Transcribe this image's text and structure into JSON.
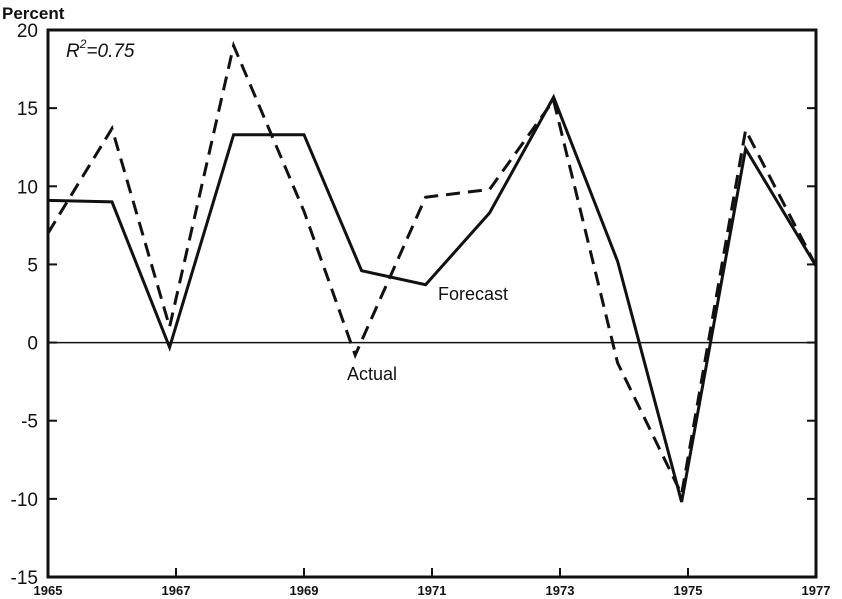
{
  "chart_data": {
    "type": "line",
    "ylabel": "Percent",
    "ylim": [
      -15,
      20
    ],
    "yticks": [
      "20",
      "15",
      "10",
      "5",
      "0",
      "-5",
      "-10",
      "-15"
    ],
    "xlim": [
      1965,
      1977
    ],
    "xticks": [
      "1965",
      "1967",
      "1969",
      "1971",
      "1973",
      "1975",
      "1977"
    ],
    "r2": {
      "prefix": "R",
      "exponent": "2",
      "value": "=0.75"
    },
    "series": [
      {
        "name": "Forecast",
        "style": "solid",
        "points": [
          [
            1965,
            9.1
          ],
          [
            1966,
            9.0
          ],
          [
            1966.9,
            -0.3
          ],
          [
            1967.9,
            13.3
          ],
          [
            1969,
            13.3
          ],
          [
            1969.9,
            4.6
          ],
          [
            1970.9,
            3.7
          ],
          [
            1971.9,
            8.3
          ],
          [
            1972.9,
            15.7
          ],
          [
            1973.9,
            5.2
          ],
          [
            1974.9,
            -10.2
          ],
          [
            1975.9,
            12.4
          ],
          [
            1977,
            4.9
          ]
        ]
      },
      {
        "name": "Actual",
        "style": "dashed",
        "points": [
          [
            1965,
            7.0
          ],
          [
            1966,
            13.7
          ],
          [
            1966.9,
            1.0
          ],
          [
            1967.9,
            19.0
          ],
          [
            1969,
            8.4
          ],
          [
            1969.8,
            -0.8
          ],
          [
            1970.9,
            9.3
          ],
          [
            1971.9,
            9.8
          ],
          [
            1972.9,
            15.5
          ],
          [
            1973.9,
            -1.3
          ],
          [
            1974.9,
            -9.7
          ],
          [
            1975.9,
            13.6
          ],
          [
            1977,
            4.9
          ]
        ]
      }
    ],
    "colors": {
      "line": "#111111",
      "background": "#ffffff"
    }
  }
}
